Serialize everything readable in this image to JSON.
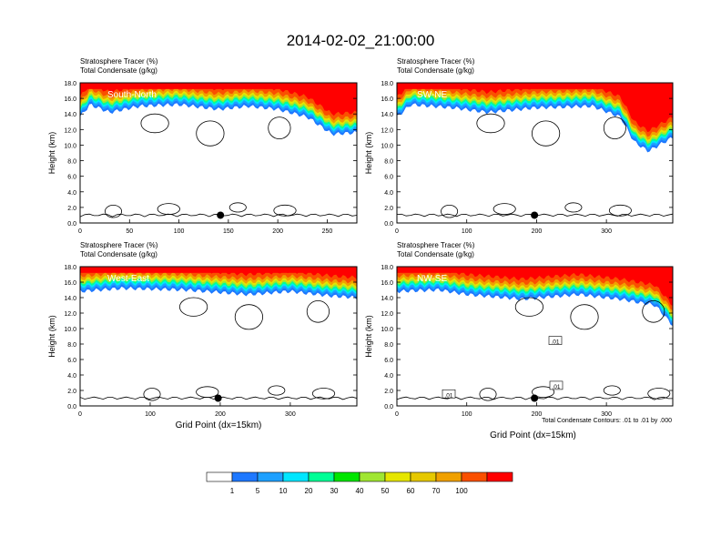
{
  "title": "2014-02-02_21:00:00",
  "panel_header_left": "Stratosphere Tracer   (%)",
  "panel_header_left2": "Total Condensate   (g/kg)",
  "ylabel": "Height (km)",
  "xlabel": "Grid Point (dx=15km)",
  "contour_note": "Total Condensate Contours: .01 to .01 by .000",
  "contour_label": ".01",
  "colors": {
    "levels": [
      "#ffffff",
      "#1e78ff",
      "#1ea0ff",
      "#00e6ff",
      "#00ff96",
      "#00e600",
      "#a0e632",
      "#e6e600",
      "#e6c800",
      "#f0a000",
      "#fa5000",
      "#ff0000"
    ],
    "border": "#000000"
  },
  "chart_data": [
    {
      "type": "heatmap",
      "name": "South-North",
      "label": "South-North",
      "xlim": [
        0,
        280
      ],
      "xticks": [
        0,
        50,
        100,
        150,
        200,
        250
      ],
      "ylim": [
        0,
        18
      ],
      "yticks": [
        "0.0",
        "2.0",
        "4.0",
        "6.0",
        "8.0",
        "10.0",
        "12.0",
        "14.0",
        "16.0",
        "18.0"
      ],
      "marker": {
        "x": 142,
        "y": 1.0
      },
      "tropopause_km": [
        [
          0,
          14.2
        ],
        [
          10,
          15.8
        ],
        [
          30,
          14.8
        ],
        [
          60,
          15.6
        ],
        [
          100,
          15.8
        ],
        [
          140,
          15.2
        ],
        [
          170,
          15.6
        ],
        [
          200,
          15.2
        ],
        [
          230,
          14.2
        ],
        [
          255,
          12.0
        ],
        [
          280,
          12.2
        ]
      ],
      "contour_label_count": 0
    },
    {
      "type": "heatmap",
      "name": "SW-NE",
      "label": "SW-NE",
      "xlim": [
        0,
        395
      ],
      "xticks": [
        0,
        100,
        200,
        300
      ],
      "ylim": [
        0,
        18
      ],
      "yticks": [
        "0.0",
        "2.0",
        "4.0",
        "6.0",
        "8.0",
        "10.0",
        "12.0",
        "14.0",
        "16.0",
        "18.0"
      ],
      "marker": {
        "x": 197,
        "y": 1.0
      },
      "tropopause_km": [
        [
          0,
          14.2
        ],
        [
          20,
          15.8
        ],
        [
          80,
          15.4
        ],
        [
          130,
          14.8
        ],
        [
          200,
          15.4
        ],
        [
          280,
          15.6
        ],
        [
          320,
          14.2
        ],
        [
          340,
          11.0
        ],
        [
          360,
          9.8
        ],
        [
          395,
          11.6
        ]
      ],
      "contour_label_count": 0
    },
    {
      "type": "heatmap",
      "name": "West-East",
      "label": "West-East",
      "xlim": [
        0,
        395
      ],
      "xticks": [
        0,
        100,
        200,
        300
      ],
      "ylim": [
        0,
        18
      ],
      "yticks": [
        "0.0",
        "2.0",
        "4.0",
        "6.0",
        "8.0",
        "10.0",
        "12.0",
        "14.0",
        "16.0",
        "18.0"
      ],
      "marker": {
        "x": 197,
        "y": 1.0
      },
      "tropopause_km": [
        [
          0,
          15.4
        ],
        [
          60,
          15.8
        ],
        [
          150,
          15.6
        ],
        [
          240,
          15.0
        ],
        [
          300,
          15.4
        ],
        [
          360,
          14.8
        ],
        [
          395,
          14.6
        ]
      ],
      "contour_label_count": 0
    },
    {
      "type": "heatmap",
      "name": "NW-SE",
      "label": "NW-SE",
      "xlim": [
        0,
        395
      ],
      "xticks": [
        0,
        100,
        200,
        300
      ],
      "ylim": [
        0,
        18
      ],
      "yticks": [
        "0.0",
        "2.0",
        "4.0",
        "6.0",
        "8.0",
        "10.0",
        "12.0",
        "14.0",
        "16.0",
        "18.0"
      ],
      "marker": {
        "x": 197,
        "y": 1.0
      },
      "tropopause_km": [
        [
          0,
          15.4
        ],
        [
          60,
          15.6
        ],
        [
          100,
          15.0
        ],
        [
          180,
          14.4
        ],
        [
          260,
          15.0
        ],
        [
          320,
          14.4
        ],
        [
          370,
          13.6
        ],
        [
          395,
          11.0
        ]
      ],
      "contour_label_count": 3
    }
  ],
  "colorbar": {
    "ticks": [
      "1",
      "5",
      "10",
      "20",
      "30",
      "40",
      "50",
      "60",
      "70",
      "100"
    ]
  }
}
